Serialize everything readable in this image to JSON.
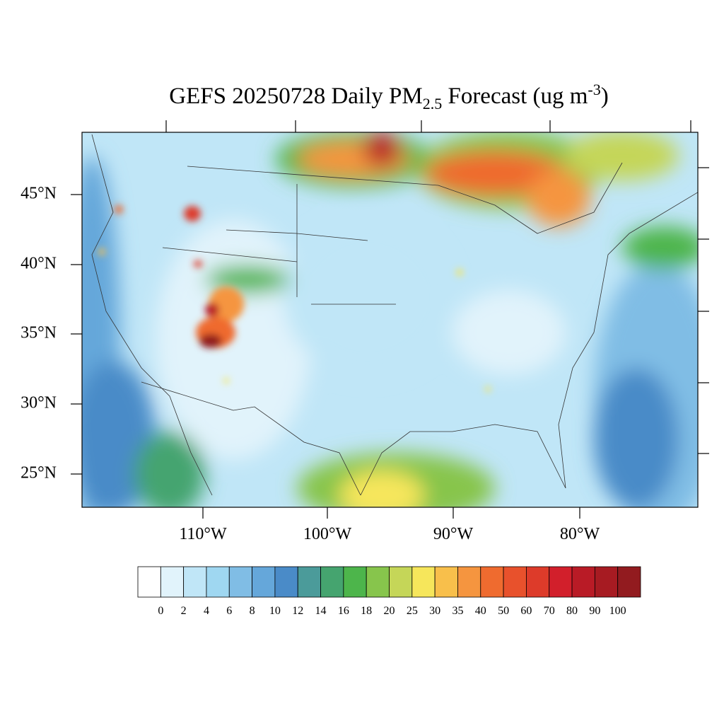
{
  "header": {
    "title": {
      "main": "GEFS 20250728 Daily PM",
      "subscript": "2.5",
      "rest": " Forecast (ug m",
      "superscript": "-3",
      "close": ")"
    }
  },
  "map": {
    "lat_labels": [
      "45°N",
      "40°N",
      "35°N",
      "30°N",
      "25°N"
    ],
    "lon_labels": [
      "110°W",
      "100°W",
      "90°W",
      "80°W"
    ]
  },
  "colorbar": {
    "levels": [
      0,
      2,
      4,
      6,
      8,
      10,
      12,
      14,
      16,
      18,
      20,
      25,
      30,
      35,
      40,
      50,
      60,
      70,
      80,
      90,
      100
    ],
    "colors": [
      "#ffffff",
      "#e1f3fb",
      "#c0e6f7",
      "#9fd7f1",
      "#80bde5",
      "#65a7da",
      "#4a8bc8",
      "#4b9b9a",
      "#45a46f",
      "#4db54b",
      "#87c54c",
      "#c5d658",
      "#f6e65b",
      "#f8bf4b",
      "#f5953f",
      "#ef6b2f",
      "#e8512c",
      "#dd3b2a",
      "#d21f2b",
      "#b91b26",
      "#a71b22",
      "#921b1f"
    ]
  }
}
